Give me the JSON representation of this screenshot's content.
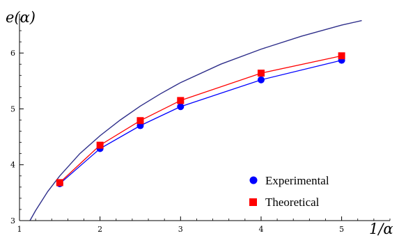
{
  "chart_data": {
    "type": "line",
    "title": "",
    "xlabel": "1/α",
    "ylabel": "e(α)",
    "xlim": [
      1.0,
      5.6
    ],
    "ylim": [
      3.0,
      6.7
    ],
    "x_ticks": [
      1,
      2,
      3,
      4,
      5
    ],
    "y_ticks": [
      3,
      4,
      5,
      6
    ],
    "grid": false,
    "legend_position": "bottom-right",
    "series": [
      {
        "name": "Experimental",
        "marker": "circle",
        "color": "#0000ff",
        "x": [
          1.5,
          2.0,
          2.5,
          3.0,
          4.0,
          5.0
        ],
        "y": [
          3.66,
          4.29,
          4.7,
          5.04,
          5.52,
          5.87
        ]
      },
      {
        "name": "Theoretical",
        "marker": "square",
        "color": "#ff0000",
        "x": [
          1.5,
          2.0,
          2.5,
          3.0,
          4.0,
          5.0
        ],
        "y": [
          3.68,
          4.35,
          4.79,
          5.15,
          5.64,
          5.95
        ]
      },
      {
        "marker": "none",
        "color": "#2e2e8a",
        "x": [
          1.13,
          1.2,
          1.35,
          1.5,
          1.75,
          2.0,
          2.25,
          2.5,
          2.75,
          3.0,
          3.5,
          4.0,
          4.5,
          5.0,
          5.25
        ],
        "y": [
          3.0,
          3.18,
          3.52,
          3.8,
          4.2,
          4.52,
          4.8,
          5.05,
          5.27,
          5.47,
          5.8,
          6.07,
          6.3,
          6.5,
          6.58
        ]
      }
    ]
  }
}
